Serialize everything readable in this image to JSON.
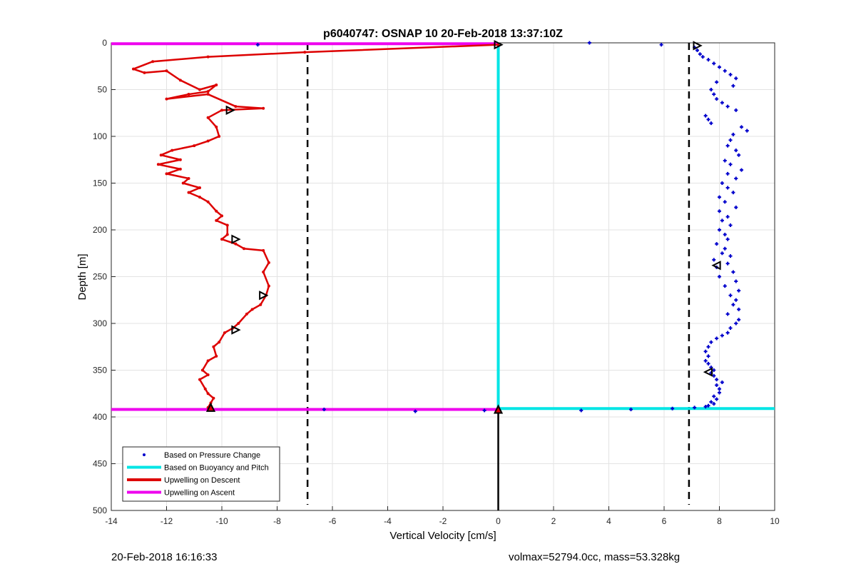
{
  "chart_data": {
    "type": "line",
    "title": "p6040747: OSNAP 10 20-Feb-2018 13:37:10Z",
    "xlabel": "Vertical Velocity [cm/s]",
    "ylabel": "Depth [m]",
    "xlim": [
      -14,
      10
    ],
    "ylim": [
      0,
      500
    ],
    "y_reversed": true,
    "grid": true,
    "x_ticks": [
      "-14",
      "-12",
      "-10",
      "-8",
      "-6",
      "-4",
      "-2",
      "0",
      "2",
      "4",
      "6",
      "8",
      "10"
    ],
    "y_ticks": [
      "0",
      "50",
      "100",
      "150",
      "200",
      "250",
      "300",
      "350",
      "400",
      "450",
      "500"
    ],
    "legend_position": "bottom-left",
    "legend": [
      {
        "label": "Based on Pressure Change",
        "color": "#0000cc",
        "style": "marker"
      },
      {
        "label": "Based on Buoyancy and Pitch",
        "color": "#00e5e5",
        "style": "line"
      },
      {
        "label": "Upwelling on Descent",
        "color": "#dd0000",
        "style": "line"
      },
      {
        "label": "Upwelling on Ascent",
        "color": "#ee00ee",
        "style": "line"
      }
    ],
    "reference_lines": {
      "dashed_x": [
        -6.9,
        6.9
      ],
      "solid_x": 0
    },
    "series": [
      {
        "name": "Upwelling on Descent",
        "color": "#dd0000",
        "x": [
          0,
          -7,
          -10.5,
          -12.5,
          -13.2,
          -12.8,
          -12,
          -11.5,
          -10.8,
          -10.2,
          -10.5,
          -11.2,
          -12,
          -10.5,
          -9.5,
          -8.5,
          -10,
          -10.5,
          -10.2,
          -10.1,
          -10.5,
          -11,
          -11.8,
          -12.2,
          -11.5,
          -12.3,
          -11.5,
          -12,
          -11.2,
          -11.4,
          -10.8,
          -11.2,
          -10.8,
          -10.5,
          -10.2,
          -10,
          -10.2,
          -9.8,
          -9.8,
          -10,
          -9.5,
          -9.2,
          -8.5,
          -8.3,
          -8.5,
          -8.3,
          -8.4,
          -8.6,
          -8.9,
          -9.1,
          -9.4,
          -9.6,
          -9.9,
          -10.1,
          -10.3,
          -10.2,
          -10.5,
          -10.7,
          -10.5,
          -10.8,
          -10.6,
          -10.5,
          -10.3,
          -10.4,
          -10.5
        ],
        "y": [
          2,
          10,
          15,
          20,
          28,
          32,
          30,
          40,
          50,
          45,
          52,
          55,
          60,
          55,
          68,
          70,
          72,
          80,
          90,
          100,
          105,
          110,
          115,
          120,
          125,
          130,
          135,
          140,
          145,
          150,
          155,
          160,
          165,
          170,
          180,
          185,
          190,
          195,
          205,
          210,
          215,
          220,
          222,
          235,
          245,
          260,
          270,
          280,
          285,
          290,
          300,
          305,
          310,
          320,
          325,
          335,
          340,
          350,
          355,
          360,
          370,
          375,
          380,
          385,
          390
        ]
      },
      {
        "name": "Upwelling on Ascent",
        "color": "#ee00ee",
        "x": [
          -14,
          0,
          -14,
          0
        ],
        "y": [
          1,
          1,
          392,
          392
        ]
      },
      {
        "name": "Based on Buoyancy and Pitch",
        "color": "#00e5e5",
        "x": [
          0,
          0,
          10
        ],
        "y": [
          0,
          391,
          391
        ]
      },
      {
        "name": "Based on Pressure Change",
        "color": "#0000cc",
        "x": [
          -8.7,
          3.3,
          5.9,
          7.1,
          7.2,
          7.3,
          7.4,
          7.6,
          7.8,
          8.0,
          8.2,
          8.4,
          8.6,
          7.9,
          8.5,
          7.7,
          7.8,
          7.9,
          8.1,
          8.3,
          8.6,
          7.5,
          7.6,
          7.7,
          8.8,
          9.0,
          8.5,
          8.4,
          8.3,
          8.6,
          8.7,
          8.2,
          8.4,
          8.8,
          8.3,
          8.6,
          8.1,
          8.3,
          8.5,
          8.0,
          8.2,
          8.6,
          8.0,
          8.3,
          8.1,
          8.4,
          8.0,
          8.2,
          8.3,
          7.9,
          8.2,
          8.1,
          8.4,
          7.8,
          8.3,
          7.9,
          8.5,
          8.0,
          8.6,
          8.2,
          8.7,
          8.4,
          8.6,
          8.5,
          8.7,
          8.3,
          8.7,
          8.6,
          8.4,
          8.3,
          8.1,
          7.9,
          7.7,
          7.6,
          7.5,
          7.6,
          7.5,
          7.6,
          7.7,
          7.8,
          7.7,
          7.8,
          7.9,
          8.1,
          7.9,
          8.0,
          8.0,
          7.8,
          7.9,
          7.7,
          7.8,
          7.6,
          7.5,
          7.1,
          6.3,
          4.8,
          3.0,
          -0.5,
          -3.0,
          -6.3
        ],
        "y": [
          2,
          0,
          2,
          5,
          8,
          12,
          15,
          18,
          22,
          26,
          30,
          34,
          38,
          42,
          46,
          50,
          55,
          60,
          64,
          68,
          72,
          78,
          82,
          86,
          90,
          94,
          98,
          104,
          110,
          115,
          120,
          126,
          130,
          136,
          140,
          145,
          150,
          155,
          160,
          165,
          170,
          176,
          180,
          186,
          190,
          195,
          200,
          205,
          210,
          215,
          220,
          225,
          228,
          232,
          236,
          240,
          245,
          250,
          255,
          260,
          265,
          270,
          275,
          280,
          285,
          290,
          296,
          300,
          305,
          310,
          313,
          316,
          320,
          325,
          330,
          335,
          340,
          343,
          347,
          350,
          353,
          356,
          360,
          363,
          366,
          370,
          374,
          378,
          381,
          384,
          386,
          388,
          389,
          390,
          391,
          392,
          393,
          393,
          394,
          392
        ]
      }
    ],
    "markers": [
      {
        "shape": "triangle-right",
        "x": 0,
        "y": 2
      },
      {
        "shape": "triangle-right",
        "x": -9.7,
        "y": 72
      },
      {
        "shape": "triangle-right",
        "x": -9.5,
        "y": 210
      },
      {
        "shape": "triangle-right",
        "x": -8.5,
        "y": 270
      },
      {
        "shape": "triangle-right",
        "x": -9.5,
        "y": 307
      },
      {
        "shape": "triangle-right",
        "x": 7.2,
        "y": 3
      },
      {
        "shape": "triangle-left",
        "x": 7.9,
        "y": 238
      },
      {
        "shape": "triangle-left",
        "x": 7.6,
        "y": 352
      },
      {
        "shape": "triangle-up",
        "x": -10.4,
        "y": 390
      },
      {
        "shape": "triangle-up",
        "x": 0,
        "y": 392
      }
    ]
  },
  "footer": {
    "timestamp": "20-Feb-2018 16:16:33",
    "info": "volmax=52794.0cc, mass=53.328kg"
  }
}
